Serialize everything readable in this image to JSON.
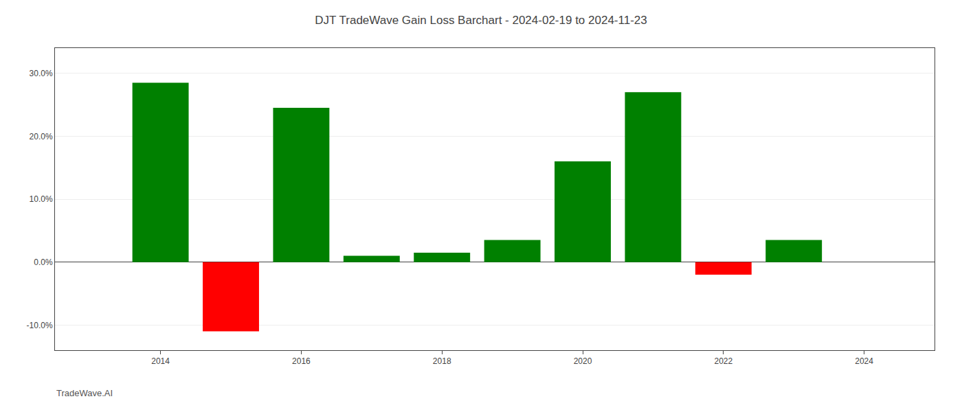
{
  "chart_data": {
    "type": "bar",
    "title": "DJT TradeWave Gain Loss Barchart - 2024-02-19 to 2024-11-23",
    "annotations": [
      "TradeWave.AI"
    ],
    "x": [
      2014,
      2015,
      2016,
      2017,
      2018,
      2019,
      2020,
      2021,
      2022,
      2023
    ],
    "values": [
      0.285,
      -0.11,
      0.245,
      0.01,
      0.015,
      0.035,
      0.16,
      0.27,
      -0.02,
      0.035
    ],
    "colors": [
      "#008000",
      "#ff0000",
      "#008000",
      "#008000",
      "#008000",
      "#008000",
      "#008000",
      "#008000",
      "#ff0000",
      "#008000"
    ],
    "xlim": [
      2012.5,
      2025.0
    ],
    "xticks": [
      2014,
      2016,
      2018,
      2020,
      2022,
      2024
    ],
    "ylim": [
      -0.14,
      0.34
    ],
    "yticks": [
      {
        "value": -0.1,
        "label": "-10.0%"
      },
      {
        "value": 0.0,
        "label": "0.0%"
      },
      {
        "value": 0.1,
        "label": "10.0%"
      },
      {
        "value": 0.2,
        "label": "20.0%"
      },
      {
        "value": 0.3,
        "label": "30.0%"
      }
    ],
    "grid": true
  }
}
